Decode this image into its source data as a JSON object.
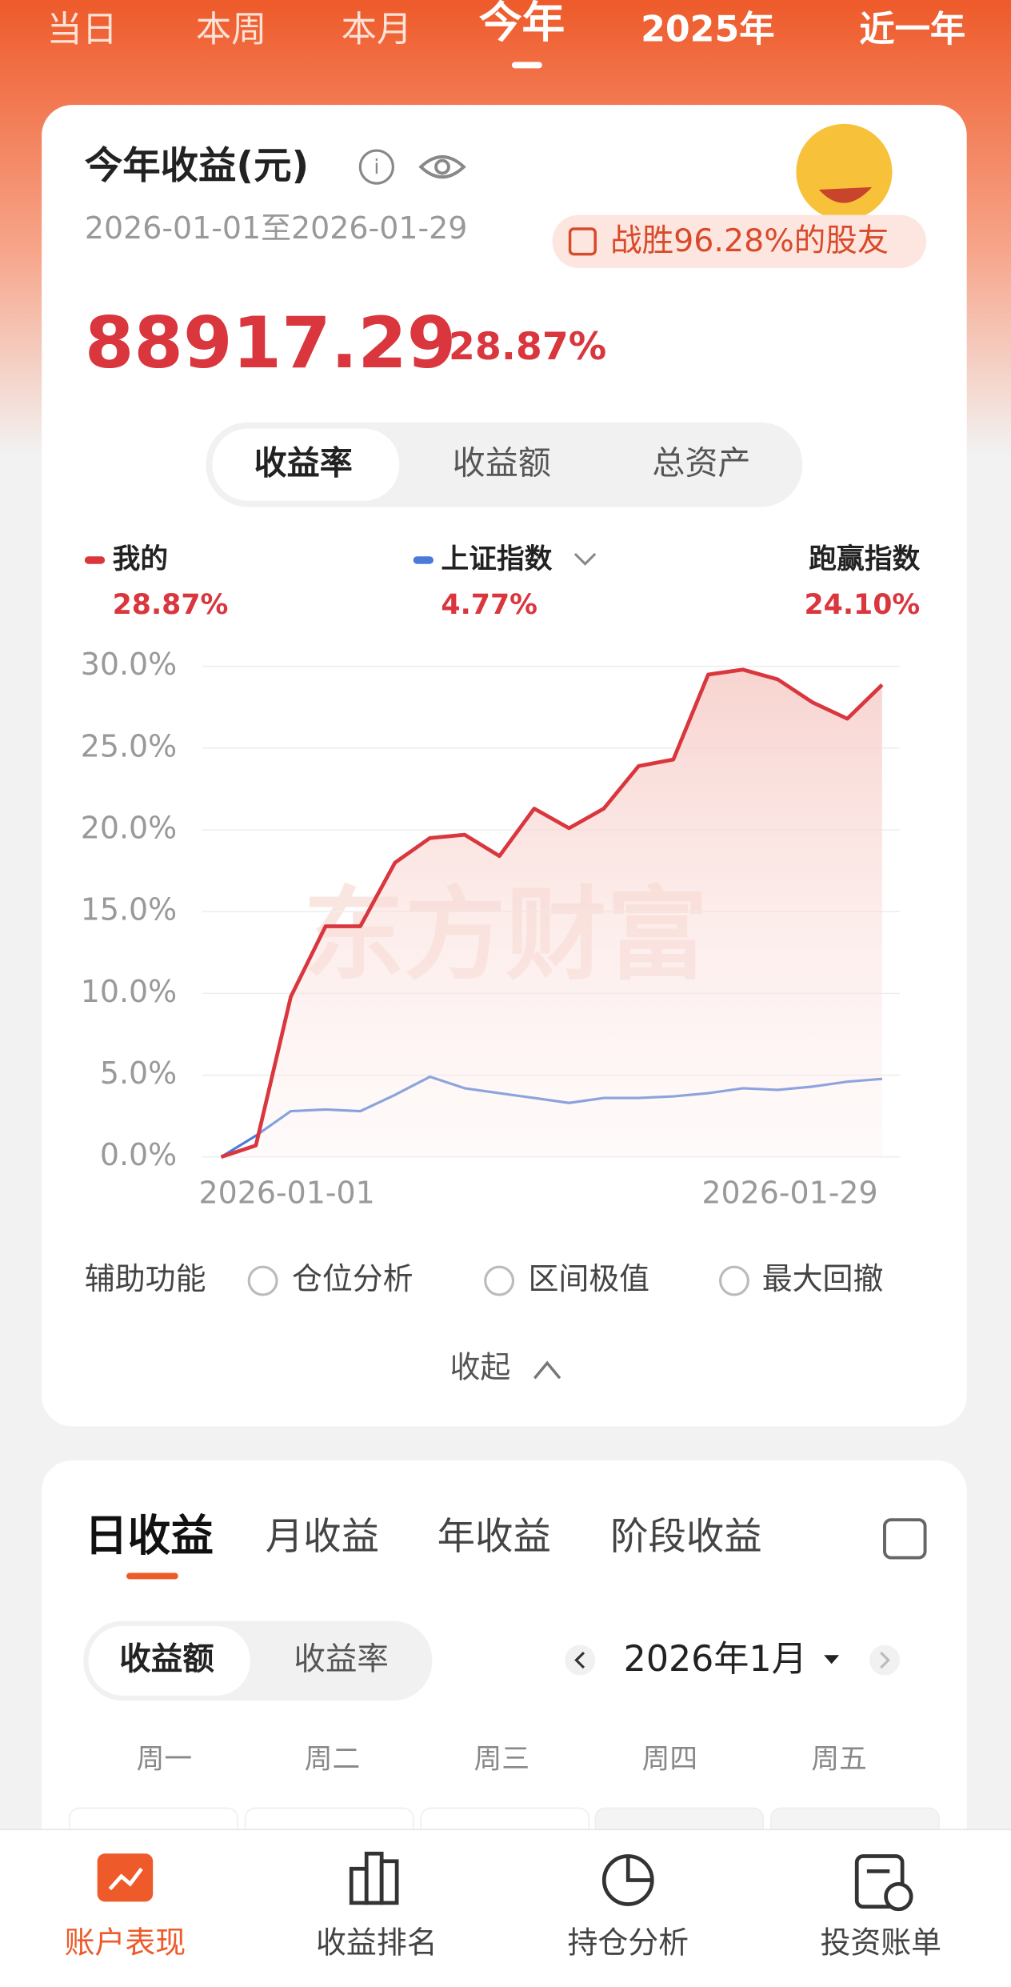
{
  "top_tabs": [
    "当日",
    "本周",
    "本月",
    "今年",
    "2025年",
    "近一年"
  ],
  "card": {
    "title": "今年收益(元)",
    "date_range": "2026-01-01至2026-01-29",
    "badge": "战胜96.28%的股友",
    "amount": "88917.29",
    "rate": "28.87%",
    "segments": [
      "收益率",
      "收益额",
      "总资产"
    ],
    "outperform_label": "跑赢指数",
    "outperform_value": "24.10%",
    "watermark": "东方财富",
    "aux_label": "辅助功能",
    "aux_options": [
      "仓位分析",
      "区间极值",
      "最大回撤"
    ],
    "collapse": "收起"
  },
  "chart_data": {
    "type": "line",
    "categories": [
      "2026-01-01",
      null,
      null,
      null,
      null,
      null,
      null,
      null,
      null,
      null,
      null,
      null,
      null,
      null,
      null,
      null,
      null,
      null,
      null,
      "2026-01-29"
    ],
    "series": [
      {
        "name": "我的",
        "color": "#d9363e",
        "latest_label": "28.87%",
        "values": [
          0,
          0.7,
          9.8,
          14.1,
          14.1,
          18,
          19.5,
          19.7,
          18.4,
          21.3,
          20.1,
          21.3,
          23.9,
          24.3,
          29.5,
          29.8,
          29.2,
          27.8,
          26.8,
          28.87
        ]
      },
      {
        "name": "上证指数",
        "color": "#4a7bd6",
        "latest_label": "4.77%",
        "values": [
          0,
          1.3,
          2.8,
          2.9,
          2.8,
          3.8,
          4.9,
          4.2,
          3.9,
          3.6,
          3.3,
          3.6,
          3.6,
          3.7,
          3.9,
          4.2,
          4.1,
          4.3,
          4.6,
          4.77
        ]
      }
    ],
    "ylim": [
      0,
      30
    ],
    "yticks": [
      {
        "value": 0,
        "label": "0.0%"
      },
      {
        "value": 5,
        "label": "5.0%"
      },
      {
        "value": 10,
        "label": "10.0%"
      },
      {
        "value": 15,
        "label": "15.0%"
      },
      {
        "value": 20,
        "label": "20.0%"
      },
      {
        "value": 25,
        "label": "25.0%"
      },
      {
        "value": 30,
        "label": "30.0%"
      }
    ],
    "grid": true
  },
  "detail": {
    "tabs": [
      "日收益",
      "月收益",
      "年收益",
      "阶段收益"
    ],
    "segments": [
      "收益额",
      "收益率"
    ],
    "month": "2026年1月",
    "weekdays": [
      "周一",
      "周二",
      "周三",
      "周四",
      "周五"
    ]
  },
  "bottom_nav": [
    "账户表现",
    "收益排名",
    "持仓分析",
    "投资账单"
  ]
}
